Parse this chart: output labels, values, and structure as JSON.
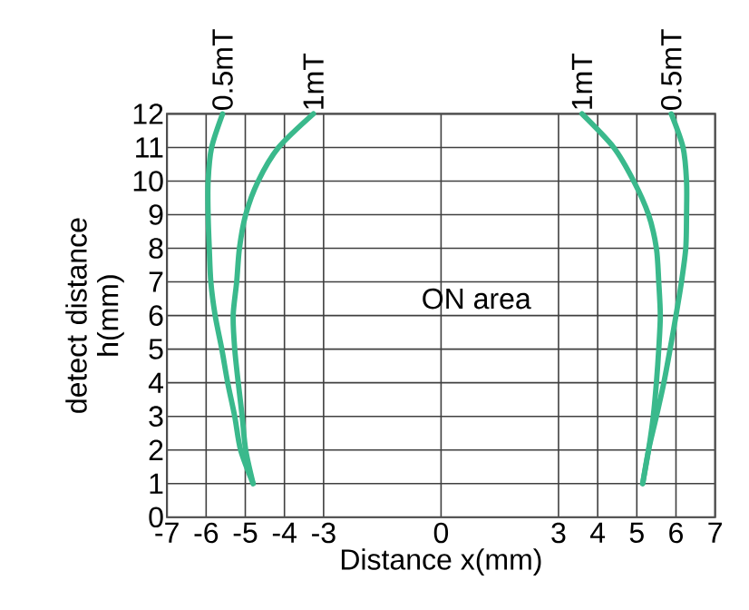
{
  "chart_data": {
    "type": "line",
    "xlabel": "Distance x(mm)",
    "ylabel": "detect distance h(mm)",
    "xlim": [
      -7,
      7
    ],
    "ylim": [
      0,
      12
    ],
    "xticks": [
      -7,
      -6,
      -5,
      -4,
      -3,
      0,
      3,
      4,
      5,
      6,
      7
    ],
    "yticks": [
      0,
      1,
      2,
      3,
      4,
      5,
      6,
      7,
      8,
      9,
      10,
      11,
      12
    ],
    "grid": true,
    "legend": false,
    "marker": "none",
    "line_style": "solid",
    "annotations": [
      "ON area"
    ],
    "series": [
      {
        "name": "0.5mT",
        "color": "#3ab98c",
        "x": [
          -4.8,
          -5.12,
          -5.27,
          -5.45,
          -5.6,
          -5.77,
          -5.88,
          -5.92,
          -5.95,
          -5.95,
          -5.86,
          -5.58
        ],
        "values": [
          1,
          2,
          3,
          4,
          5,
          6,
          7,
          8,
          9,
          10,
          11,
          12
        ]
      },
      {
        "name": "1mT",
        "color": "#3ab98c",
        "x": [
          -4.8,
          -4.99,
          -5.08,
          -5.18,
          -5.27,
          -5.31,
          -5.22,
          -5.15,
          -4.99,
          -4.67,
          -4.15,
          -3.26
        ],
        "values": [
          1,
          2,
          3,
          4,
          5,
          6,
          7,
          8,
          9,
          10,
          11,
          12
        ]
      },
      {
        "name": "1mT",
        "color": "#3ab98c",
        "x": [
          5.15,
          5.3,
          5.42,
          5.5,
          5.56,
          5.6,
          5.56,
          5.5,
          5.3,
          4.92,
          4.41,
          3.6
        ],
        "values": [
          1,
          2,
          3,
          4,
          5,
          6,
          7,
          8,
          9,
          10,
          11,
          12
        ]
      },
      {
        "name": "0.5mT",
        "color": "#3ab98c",
        "x": [
          5.15,
          5.3,
          5.5,
          5.69,
          5.85,
          6.0,
          6.14,
          6.25,
          6.27,
          6.27,
          6.18,
          5.88
        ],
        "values": [
          1,
          2,
          3,
          4,
          5,
          6,
          7,
          8,
          9,
          10,
          11,
          12
        ]
      }
    ]
  }
}
